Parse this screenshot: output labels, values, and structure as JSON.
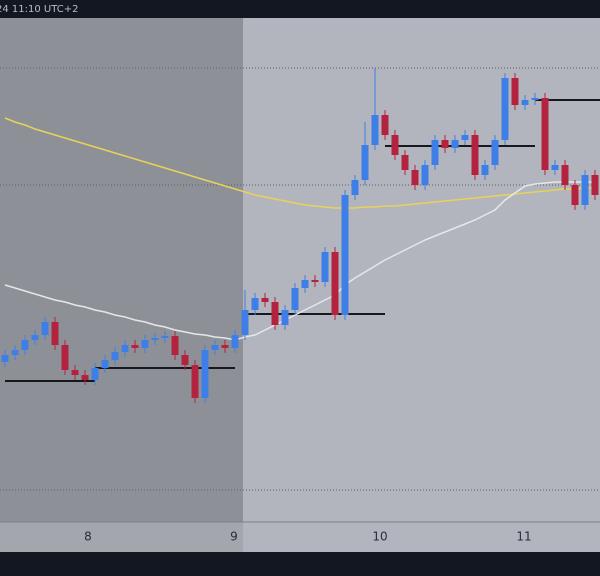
{
  "header": {
    "time": "24 11:10 UTC+2"
  },
  "chart_data": {
    "type": "candlestick",
    "xlim": [
      -0.5,
      59.5
    ],
    "ylim": [
      0,
      504
    ],
    "x_labels": [
      {
        "label": "8",
        "at": 8.3
      },
      {
        "label": "9",
        "at": 22.9
      },
      {
        "label": "10",
        "at": 37.5
      },
      {
        "label": "11",
        "at": 51.9
      }
    ],
    "up_color": "#3d7fe6",
    "down_color": "#b3233f",
    "open": [
      160,
      167,
      172,
      182,
      187,
      200,
      177,
      152,
      147,
      142,
      154,
      162,
      170,
      177,
      174,
      182,
      184,
      186,
      167,
      157,
      124,
      172,
      177,
      174,
      187,
      212,
      224,
      220,
      197,
      212,
      234,
      242,
      240,
      270,
      207,
      327,
      342,
      377,
      407,
      387,
      367,
      352,
      337,
      357,
      382,
      374,
      382,
      387,
      347,
      357,
      382,
      444,
      417,
      422,
      424,
      352,
      357,
      337,
      317,
      347
    ],
    "high": [
      172,
      177,
      187,
      192,
      205,
      205,
      182,
      157,
      152,
      159,
      167,
      175,
      182,
      182,
      187,
      189,
      191,
      191,
      172,
      162,
      177,
      182,
      182,
      192,
      232,
      229,
      229,
      225,
      217,
      239,
      247,
      247,
      275,
      275,
      332,
      347,
      400,
      454,
      412,
      392,
      372,
      357,
      362,
      387,
      387,
      387,
      392,
      392,
      362,
      387,
      449,
      449,
      427,
      429,
      429,
      362,
      362,
      342,
      352,
      352
    ],
    "low": [
      155,
      162,
      167,
      177,
      182,
      172,
      147,
      142,
      137,
      137,
      149,
      157,
      165,
      169,
      169,
      177,
      179,
      162,
      152,
      119,
      119,
      167,
      169,
      169,
      182,
      207,
      215,
      192,
      192,
      207,
      229,
      235,
      235,
      202,
      202,
      322,
      337,
      372,
      382,
      362,
      347,
      332,
      332,
      352,
      369,
      369,
      377,
      342,
      342,
      352,
      377,
      412,
      412,
      417,
      347,
      347,
      332,
      312,
      312,
      322
    ],
    "close": [
      167,
      172,
      182,
      187,
      200,
      177,
      152,
      147,
      142,
      154,
      162,
      170,
      177,
      174,
      182,
      184,
      186,
      167,
      157,
      124,
      172,
      177,
      174,
      187,
      212,
      224,
      220,
      197,
      212,
      234,
      242,
      240,
      270,
      207,
      327,
      342,
      377,
      407,
      387,
      367,
      352,
      337,
      357,
      382,
      374,
      382,
      387,
      347,
      357,
      382,
      444,
      417,
      422,
      424,
      352,
      357,
      337,
      317,
      347,
      327
    ],
    "series": [
      {
        "color": "#e8d25a",
        "values": [
          404,
          400,
          397,
          393,
          390,
          387,
          384,
          381,
          378,
          375,
          372,
          369,
          366,
          363,
          360,
          357,
          354,
          351,
          348,
          345,
          342,
          339,
          336,
          333,
          330,
          327,
          325,
          323,
          321,
          319,
          317,
          316,
          315,
          314,
          314,
          314,
          315,
          315,
          316,
          316,
          317,
          318,
          319,
          320,
          321,
          322,
          323,
          324,
          325,
          326,
          327,
          328,
          329,
          330,
          331,
          332,
          333,
          333,
          334,
          334
        ]
      },
      {
        "color": "#e6e7ea",
        "values": [
          237,
          234,
          231,
          228,
          225,
          222,
          220,
          217,
          215,
          212,
          210,
          207,
          205,
          202,
          200,
          197,
          195,
          192,
          190,
          188,
          187,
          185,
          184,
          182,
          185,
          187,
          192,
          197,
          202,
          207,
          212,
          217,
          222,
          227,
          237,
          244,
          250,
          256,
          262,
          267,
          272,
          277,
          282,
          286,
          290,
          294,
          298,
          302,
          307,
          312,
          322,
          329,
          336,
          338,
          339,
          340,
          340,
          340,
          340,
          340
        ]
      }
    ],
    "levels": [
      {
        "value": 141,
        "from": 0,
        "to": 9
      },
      {
        "value": 154,
        "from": 9,
        "to": 23
      },
      {
        "value": 208,
        "from": 24,
        "to": 38
      },
      {
        "value": 376,
        "from": 38,
        "to": 53
      },
      {
        "value": 422,
        "from": 53,
        "to": 59.5
      }
    ],
    "guide_lines": [
      454,
      337,
      32
    ]
  }
}
